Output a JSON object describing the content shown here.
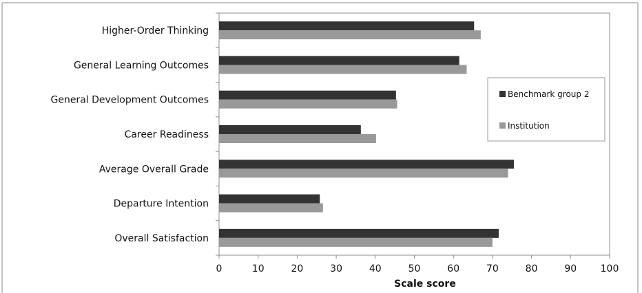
{
  "chart_data": {
    "type": "bar",
    "orientation": "horizontal",
    "categories": [
      "Higher-Order Thinking",
      "General Learning Outcomes",
      "General Development Outcomes",
      "Career Readiness",
      "Average Overall Grade",
      "Departure Intention",
      "Overall Satisfaction"
    ],
    "series": [
      {
        "name": "Benchmark group 2",
        "values": [
          65.3,
          61.5,
          45.3,
          36.3,
          75.5,
          25.8,
          71.6
        ],
        "color": "#333333"
      },
      {
        "name": "Institution",
        "values": [
          67.0,
          63.4,
          45.6,
          40.2,
          74.0,
          26.6,
          70.0
        ],
        "color": "#999999"
      }
    ],
    "xlabel": "Scale score",
    "ylabel": "",
    "title": "",
    "xlim": [
      0,
      100
    ],
    "ticks": [
      "0",
      "10",
      "20",
      "30",
      "40",
      "50",
      "60",
      "70",
      "80",
      "90",
      "100"
    ],
    "grid": false,
    "legend_position": "right"
  }
}
